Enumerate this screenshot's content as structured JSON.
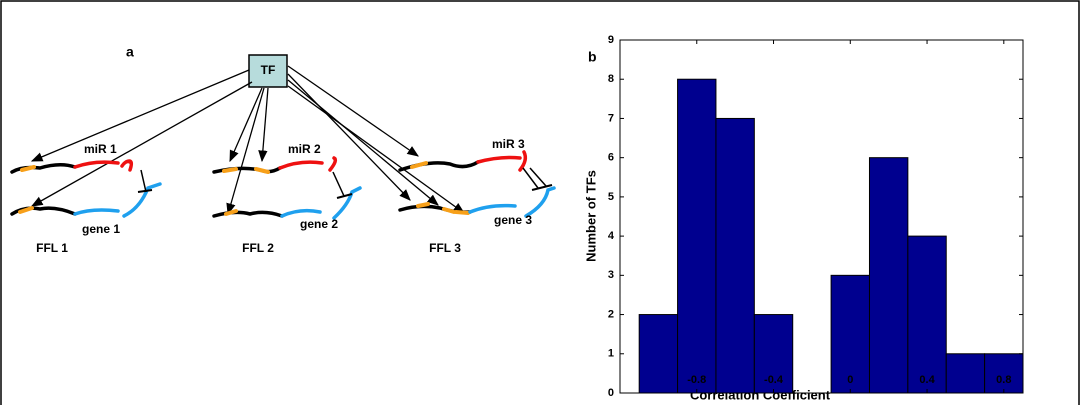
{
  "diagram": {
    "panel_label": "a",
    "hub": "TF",
    "loops": [
      {
        "mirna": "miR 1",
        "gene": "gene 1",
        "name": "FFL 1"
      },
      {
        "mirna": "miR 2",
        "gene": "gene 2",
        "name": "FFL 2"
      },
      {
        "mirna": "miR 3",
        "gene": "gene 3",
        "name": "FFL 3"
      }
    ]
  },
  "chart_data": {
    "type": "histogram",
    "panel_label": "b",
    "xlabel": "Correlation Coefficient",
    "ylabel": "Number of TFs",
    "bins": [
      -1.1,
      -0.9,
      -0.7,
      -0.5,
      -0.3,
      -0.1,
      0.1,
      0.3,
      0.5,
      0.7,
      0.9
    ],
    "values": [
      2,
      8,
      7,
      2,
      0,
      3,
      6,
      4,
      1,
      1
    ],
    "color": "#00008f",
    "xlim": [
      -1.2,
      0.9
    ],
    "xticks": [
      -0.8,
      -0.4,
      0,
      0.4,
      0.8
    ],
    "ylim": [
      0,
      9
    ],
    "yticks": [
      0,
      1,
      2,
      3,
      4,
      5,
      6,
      7,
      8,
      9
    ]
  }
}
